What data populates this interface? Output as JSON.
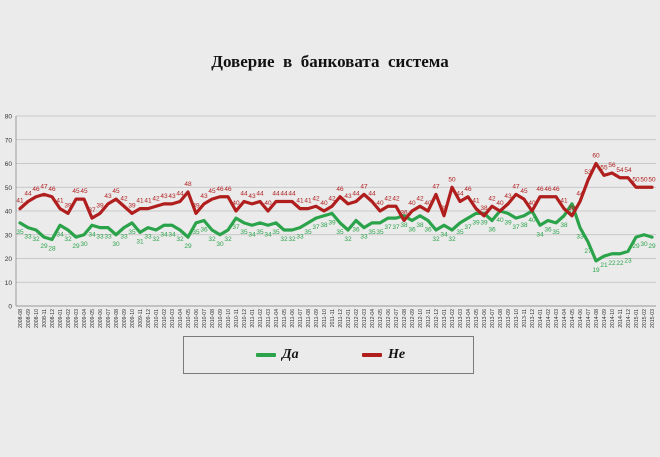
{
  "chart_data": {
    "type": "line",
    "title": "Доверие  в  банковата  система",
    "xlabel": "",
    "ylabel": "",
    "ylim": [
      0,
      80
    ],
    "yticks": [
      0,
      10,
      20,
      30,
      40,
      50,
      60,
      70,
      80
    ],
    "grid": true,
    "legend_position": "bottom",
    "categories": [
      "2008-08",
      "2008-09",
      "2008-10",
      "2008-11",
      "2008-12",
      "2009-01",
      "2009-02",
      "2009-03",
      "2009-04",
      "2009-05",
      "2009-06",
      "2009-07",
      "2009-08",
      "2009-09",
      "2009-10",
      "2009-11",
      "2009-12",
      "2010-01",
      "2010-02",
      "2010-03",
      "2010-04",
      "2010-05",
      "2010-06",
      "2010-07",
      "2010-08",
      "2010-09",
      "2010-10",
      "2010-11",
      "2010-12",
      "2011-01",
      "2011-02",
      "2011-03",
      "2011-04",
      "2011-05",
      "2011-06",
      "2011-07",
      "2011-08",
      "2011-09",
      "2011-10",
      "2011-11",
      "2011-12",
      "2012-01",
      "2012-02",
      "2012-03",
      "2012-04",
      "2012-05",
      "2012-06",
      "2012-07",
      "2012-08",
      "2012-09",
      "2012-10",
      "2012-11",
      "2012-12",
      "2013-01",
      "2013-02",
      "2013-03",
      "2013-04",
      "2013-05",
      "2013-06",
      "2013-07",
      "2013-08",
      "2013-09",
      "2013-10",
      "2013-11",
      "2013-12",
      "2014-01",
      "2014-02",
      "2014-03",
      "2014-04",
      "2014-05",
      "2014-06",
      "2014-07",
      "2014-08",
      "2014-09",
      "2014-10",
      "2014-11",
      "2014-12",
      "2015-01",
      "2015-02",
      "2015-03"
    ],
    "series": [
      {
        "name": "Да",
        "color": "#2ba34a",
        "values": [
          35,
          33,
          32,
          29,
          28,
          34,
          32,
          29,
          30,
          34,
          33,
          33,
          30,
          33,
          35,
          31,
          33,
          32,
          34,
          34,
          32,
          29,
          35,
          36,
          32,
          30,
          32,
          37,
          35,
          34,
          35,
          34,
          35,
          32,
          32,
          33,
          35,
          37,
          38,
          39,
          35,
          32,
          36,
          33,
          35,
          35,
          37,
          37,
          38,
          36,
          38,
          36,
          32,
          34,
          32,
          35,
          37,
          39,
          39,
          36,
          40,
          39,
          37,
          38,
          40,
          34,
          36,
          35,
          38,
          43,
          33,
          27,
          19,
          21,
          22,
          22,
          23,
          29,
          30,
          29
        ]
      },
      {
        "name": "Не",
        "color": "#b01e1e",
        "values": [
          41,
          44,
          46,
          47,
          46,
          41,
          39,
          45,
          45,
          37,
          39,
          43,
          45,
          42,
          39,
          41,
          41,
          42,
          43,
          43,
          44,
          48,
          39,
          43,
          45,
          46,
          46,
          40,
          44,
          43,
          44,
          40,
          44,
          44,
          44,
          41,
          41,
          42,
          40,
          42,
          46,
          43,
          44,
          47,
          44,
          40,
          42,
          42,
          36,
          40,
          42,
          40,
          47,
          38,
          50,
          44,
          46,
          41,
          38,
          42,
          40,
          43,
          47,
          45,
          40,
          46,
          46,
          46,
          41,
          38,
          44,
          53,
          60,
          55,
          56,
          54,
          54,
          50,
          50,
          50
        ]
      }
    ]
  },
  "legend": {
    "series_a_label": "Да",
    "series_b_label": "Не"
  }
}
